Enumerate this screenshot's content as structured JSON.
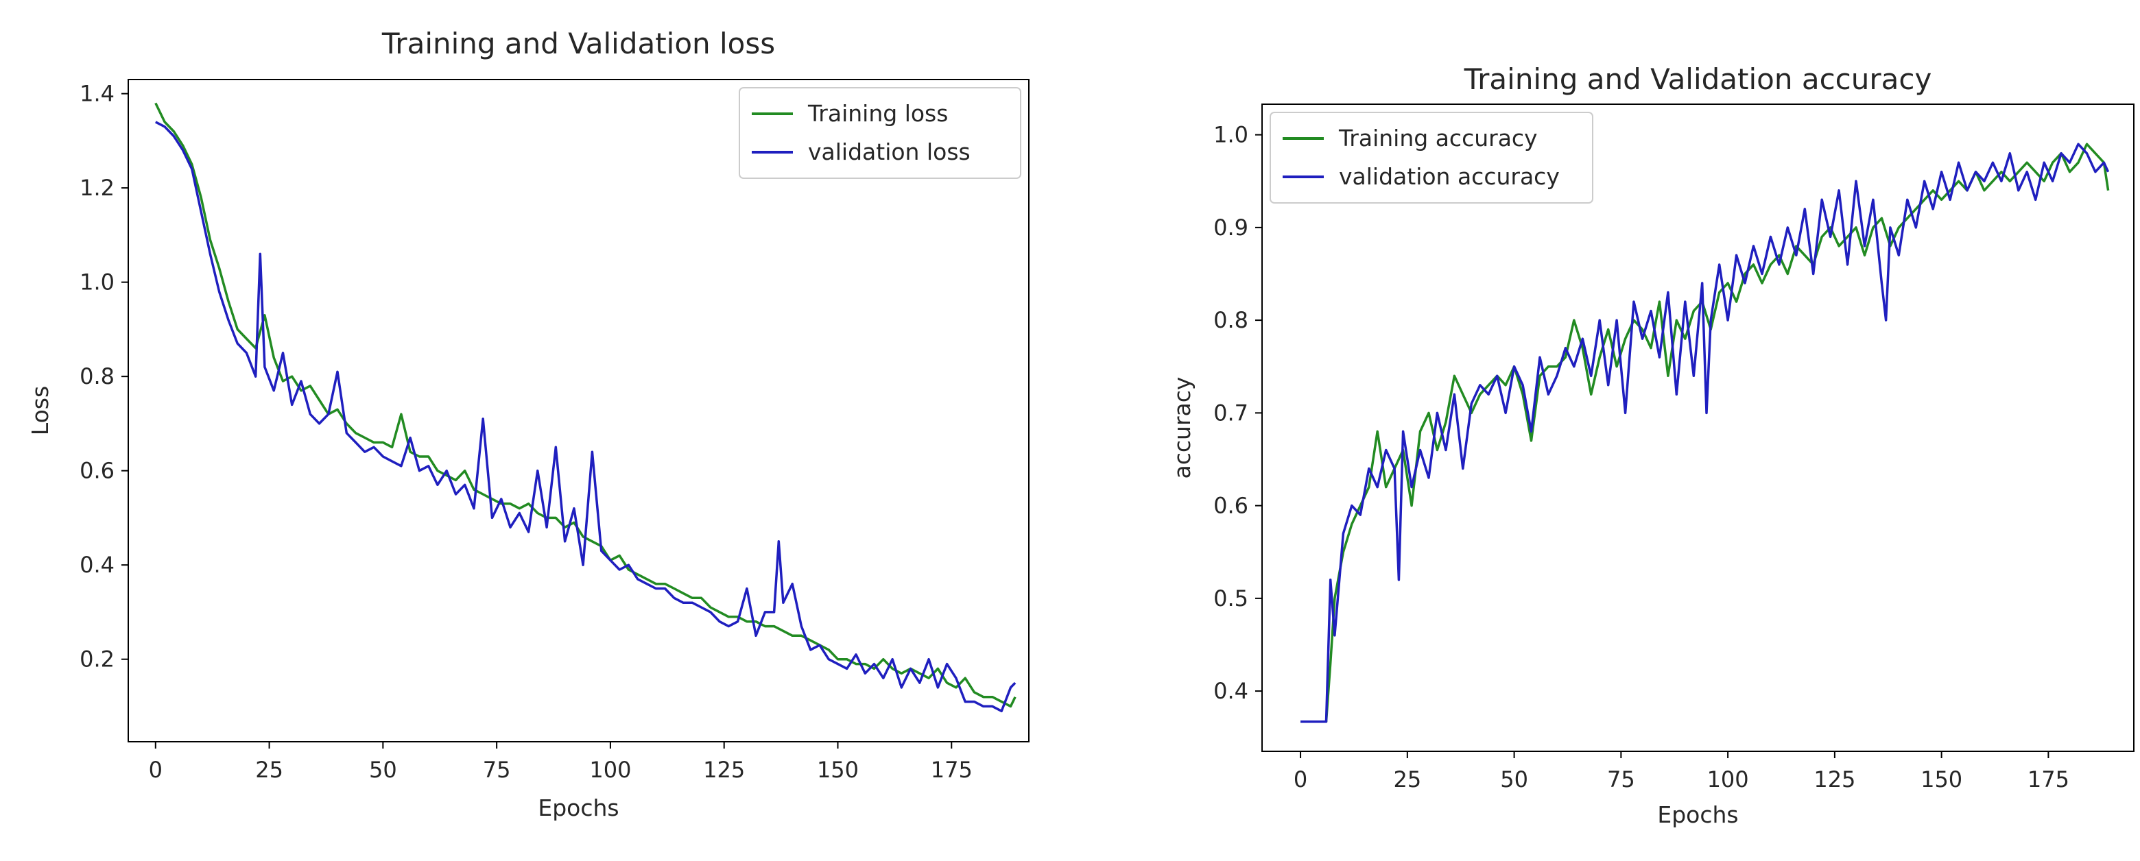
{
  "chart_data": [
    {
      "type": "line",
      "title": "Training and Validation loss",
      "xlabel": "Epochs",
      "ylabel": "Loss",
      "xlim": [
        -6,
        192
      ],
      "ylim": [
        0.025,
        1.43
      ],
      "xticks": [
        0,
        25,
        50,
        75,
        100,
        125,
        150,
        175
      ],
      "yticks": [
        0.2,
        0.4,
        0.6,
        0.8,
        1.0,
        1.2,
        1.4
      ],
      "xtick_labels": [
        "0",
        "25",
        "50",
        "75",
        "100",
        "125",
        "150",
        "175"
      ],
      "ytick_labels": [
        "0.2",
        "0.4",
        "0.6",
        "0.8",
        "1.0",
        "1.2",
        "1.4"
      ],
      "legend_position": "top-right",
      "series": [
        {
          "name": "Training loss",
          "color": "#228b22",
          "x": [
            0,
            2,
            4,
            6,
            8,
            10,
            12,
            14,
            16,
            18,
            20,
            22,
            24,
            26,
            28,
            30,
            32,
            34,
            36,
            38,
            40,
            42,
            44,
            46,
            48,
            50,
            52,
            54,
            56,
            58,
            60,
            62,
            64,
            66,
            68,
            70,
            72,
            74,
            76,
            78,
            80,
            82,
            84,
            86,
            88,
            90,
            92,
            94,
            96,
            98,
            100,
            102,
            104,
            106,
            108,
            110,
            112,
            114,
            116,
            118,
            120,
            122,
            124,
            126,
            128,
            130,
            132,
            134,
            136,
            138,
            140,
            142,
            144,
            146,
            148,
            150,
            152,
            154,
            156,
            158,
            160,
            162,
            164,
            166,
            168,
            170,
            172,
            174,
            176,
            178,
            180,
            182,
            184,
            186,
            188,
            189
          ],
          "values": [
            1.38,
            1.34,
            1.32,
            1.29,
            1.25,
            1.18,
            1.09,
            1.03,
            0.96,
            0.9,
            0.88,
            0.86,
            0.93,
            0.84,
            0.79,
            0.8,
            0.77,
            0.78,
            0.75,
            0.72,
            0.73,
            0.7,
            0.68,
            0.67,
            0.66,
            0.66,
            0.65,
            0.72,
            0.64,
            0.63,
            0.63,
            0.6,
            0.59,
            0.58,
            0.6,
            0.56,
            0.55,
            0.54,
            0.53,
            0.53,
            0.52,
            0.53,
            0.51,
            0.5,
            0.5,
            0.48,
            0.49,
            0.46,
            0.45,
            0.44,
            0.41,
            0.42,
            0.39,
            0.38,
            0.37,
            0.36,
            0.36,
            0.35,
            0.34,
            0.33,
            0.33,
            0.31,
            0.3,
            0.29,
            0.29,
            0.28,
            0.28,
            0.27,
            0.27,
            0.26,
            0.25,
            0.25,
            0.24,
            0.23,
            0.22,
            0.2,
            0.2,
            0.19,
            0.19,
            0.18,
            0.2,
            0.18,
            0.17,
            0.18,
            0.17,
            0.16,
            0.18,
            0.15,
            0.14,
            0.16,
            0.13,
            0.12,
            0.12,
            0.11,
            0.1,
            0.12
          ]
        },
        {
          "name": "validation loss",
          "color": "#1f1fbf",
          "x": [
            0,
            2,
            4,
            6,
            8,
            10,
            12,
            14,
            16,
            18,
            20,
            22,
            23,
            24,
            26,
            28,
            30,
            32,
            34,
            36,
            38,
            40,
            42,
            44,
            46,
            48,
            50,
            52,
            54,
            56,
            58,
            60,
            62,
            64,
            66,
            68,
            70,
            72,
            74,
            76,
            78,
            80,
            82,
            84,
            86,
            88,
            90,
            92,
            94,
            96,
            98,
            100,
            102,
            104,
            106,
            108,
            110,
            112,
            114,
            116,
            118,
            120,
            122,
            124,
            126,
            128,
            130,
            132,
            134,
            136,
            137,
            138,
            140,
            142,
            144,
            146,
            148,
            150,
            152,
            154,
            156,
            158,
            160,
            162,
            164,
            166,
            168,
            170,
            172,
            174,
            176,
            178,
            180,
            182,
            184,
            186,
            188,
            189
          ],
          "values": [
            1.34,
            1.33,
            1.31,
            1.28,
            1.24,
            1.15,
            1.06,
            0.98,
            0.92,
            0.87,
            0.85,
            0.8,
            1.06,
            0.82,
            0.77,
            0.85,
            0.74,
            0.79,
            0.72,
            0.7,
            0.72,
            0.81,
            0.68,
            0.66,
            0.64,
            0.65,
            0.63,
            0.62,
            0.61,
            0.67,
            0.6,
            0.61,
            0.57,
            0.6,
            0.55,
            0.57,
            0.52,
            0.71,
            0.5,
            0.54,
            0.48,
            0.51,
            0.47,
            0.6,
            0.48,
            0.65,
            0.45,
            0.52,
            0.4,
            0.64,
            0.43,
            0.41,
            0.39,
            0.4,
            0.37,
            0.36,
            0.35,
            0.35,
            0.33,
            0.32,
            0.32,
            0.31,
            0.3,
            0.28,
            0.27,
            0.28,
            0.35,
            0.25,
            0.3,
            0.3,
            0.45,
            0.32,
            0.36,
            0.27,
            0.22,
            0.23,
            0.2,
            0.19,
            0.18,
            0.21,
            0.17,
            0.19,
            0.16,
            0.2,
            0.14,
            0.18,
            0.15,
            0.2,
            0.14,
            0.19,
            0.16,
            0.11,
            0.11,
            0.1,
            0.1,
            0.09,
            0.14,
            0.15
          ]
        }
      ]
    },
    {
      "type": "line",
      "title": "Training and Validation accuracy",
      "xlabel": "Epochs",
      "ylabel": "accuracy",
      "xlim": [
        -9,
        195
      ],
      "ylim": [
        0.335,
        1.033
      ],
      "xticks": [
        0,
        25,
        50,
        75,
        100,
        125,
        150,
        175
      ],
      "yticks": [
        0.4,
        0.5,
        0.6,
        0.7,
        0.8,
        0.9,
        1.0
      ],
      "xtick_labels": [
        "0",
        "25",
        "50",
        "75",
        "100",
        "125",
        "150",
        "175"
      ],
      "ytick_labels": [
        "0.4",
        "0.5",
        "0.6",
        "0.7",
        "0.8",
        "0.9",
        "1.0"
      ],
      "legend_position": "top-left",
      "series": [
        {
          "name": "Training accuracy",
          "color": "#228b22",
          "x": [
            0,
            2,
            4,
            6,
            7,
            8,
            10,
            12,
            14,
            16,
            18,
            20,
            22,
            24,
            26,
            28,
            30,
            32,
            34,
            36,
            38,
            40,
            42,
            44,
            46,
            48,
            50,
            52,
            54,
            56,
            58,
            60,
            62,
            64,
            66,
            68,
            70,
            72,
            74,
            76,
            78,
            80,
            82,
            84,
            86,
            88,
            90,
            92,
            94,
            96,
            98,
            100,
            102,
            104,
            106,
            108,
            110,
            112,
            114,
            116,
            118,
            120,
            122,
            124,
            126,
            128,
            130,
            132,
            134,
            136,
            138,
            140,
            142,
            144,
            146,
            148,
            150,
            152,
            154,
            156,
            158,
            160,
            162,
            164,
            166,
            168,
            170,
            172,
            174,
            176,
            178,
            180,
            182,
            184,
            186,
            188,
            189
          ],
          "values": [
            0.367,
            0.367,
            0.367,
            0.367,
            0.43,
            0.5,
            0.55,
            0.58,
            0.6,
            0.62,
            0.68,
            0.62,
            0.64,
            0.66,
            0.6,
            0.68,
            0.7,
            0.66,
            0.69,
            0.74,
            0.72,
            0.7,
            0.72,
            0.73,
            0.74,
            0.73,
            0.75,
            0.72,
            0.67,
            0.74,
            0.75,
            0.75,
            0.76,
            0.8,
            0.77,
            0.72,
            0.76,
            0.79,
            0.75,
            0.78,
            0.8,
            0.79,
            0.77,
            0.82,
            0.74,
            0.8,
            0.78,
            0.81,
            0.82,
            0.79,
            0.83,
            0.84,
            0.82,
            0.85,
            0.86,
            0.84,
            0.86,
            0.87,
            0.85,
            0.88,
            0.87,
            0.86,
            0.89,
            0.9,
            0.88,
            0.89,
            0.9,
            0.87,
            0.9,
            0.91,
            0.88,
            0.9,
            0.91,
            0.92,
            0.93,
            0.94,
            0.93,
            0.94,
            0.95,
            0.94,
            0.96,
            0.94,
            0.95,
            0.96,
            0.95,
            0.96,
            0.97,
            0.96,
            0.95,
            0.97,
            0.98,
            0.96,
            0.97,
            0.99,
            0.98,
            0.97,
            0.94
          ]
        },
        {
          "name": "validation accuracy",
          "color": "#1f1fbf",
          "x": [
            0,
            2,
            4,
            6,
            7,
            8,
            10,
            12,
            14,
            16,
            18,
            20,
            22,
            23,
            24,
            26,
            28,
            30,
            32,
            34,
            36,
            38,
            40,
            42,
            44,
            46,
            48,
            50,
            52,
            54,
            56,
            58,
            60,
            62,
            64,
            66,
            68,
            70,
            72,
            74,
            76,
            78,
            80,
            82,
            84,
            86,
            88,
            90,
            92,
            94,
            95,
            96,
            98,
            100,
            102,
            104,
            106,
            108,
            110,
            112,
            114,
            116,
            118,
            120,
            122,
            124,
            126,
            128,
            130,
            132,
            134,
            136,
            137,
            138,
            140,
            142,
            144,
            146,
            148,
            150,
            152,
            154,
            156,
            158,
            160,
            162,
            164,
            166,
            168,
            170,
            172,
            174,
            176,
            178,
            180,
            182,
            184,
            186,
            188,
            189
          ],
          "values": [
            0.367,
            0.367,
            0.367,
            0.367,
            0.52,
            0.46,
            0.57,
            0.6,
            0.59,
            0.64,
            0.62,
            0.66,
            0.64,
            0.52,
            0.68,
            0.62,
            0.66,
            0.63,
            0.7,
            0.66,
            0.72,
            0.64,
            0.71,
            0.73,
            0.72,
            0.74,
            0.7,
            0.75,
            0.73,
            0.68,
            0.76,
            0.72,
            0.74,
            0.77,
            0.75,
            0.78,
            0.74,
            0.8,
            0.73,
            0.8,
            0.7,
            0.82,
            0.78,
            0.81,
            0.76,
            0.83,
            0.72,
            0.82,
            0.74,
            0.84,
            0.7,
            0.8,
            0.86,
            0.8,
            0.87,
            0.84,
            0.88,
            0.85,
            0.89,
            0.86,
            0.9,
            0.87,
            0.92,
            0.85,
            0.93,
            0.89,
            0.94,
            0.86,
            0.95,
            0.88,
            0.93,
            0.84,
            0.8,
            0.9,
            0.87,
            0.93,
            0.9,
            0.95,
            0.92,
            0.96,
            0.93,
            0.97,
            0.94,
            0.96,
            0.95,
            0.97,
            0.95,
            0.98,
            0.94,
            0.96,
            0.93,
            0.97,
            0.95,
            0.98,
            0.97,
            0.99,
            0.98,
            0.96,
            0.97,
            0.96
          ]
        }
      ]
    }
  ]
}
